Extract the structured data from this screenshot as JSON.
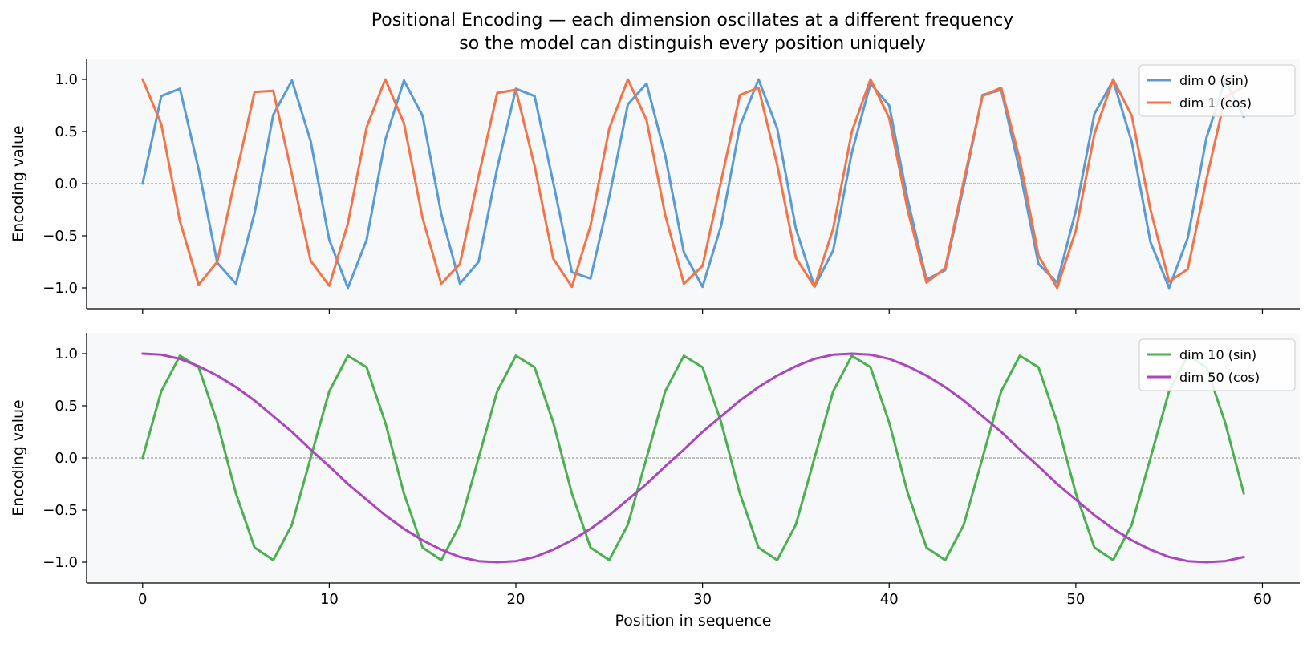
{
  "title_line1": "Positional Encoding — each dimension oscillates at a different frequency",
  "title_line2": "so the model can distinguish every position uniquely",
  "colors": {
    "background": "#ffffff",
    "plot_bg": "#f7f8fa",
    "zero_line": "#888888"
  },
  "chart_data": [
    {
      "type": "line",
      "panel": "top",
      "ylabel": "Encoding value",
      "xlabel": "",
      "xlim": [
        -3,
        62
      ],
      "ylim": [
        -1.2,
        1.2
      ],
      "xticks": [
        0,
        10,
        20,
        30,
        40,
        50,
        60
      ],
      "yticks": [
        -1.0,
        -0.5,
        0.0,
        0.5,
        1.0
      ],
      "show_x_tick_labels": false,
      "zero_line": true,
      "legend_position": "top-right",
      "series": [
        {
          "name": "dim 0 (sin)",
          "color": "#5b9bd5",
          "values": [
            0.0,
            0.84,
            0.91,
            0.14,
            -0.76,
            -0.96,
            -0.28,
            0.66,
            0.99,
            0.41,
            -0.54,
            -1.0,
            -0.54,
            0.42,
            0.99,
            0.65,
            -0.29,
            -0.96,
            -0.75,
            0.15,
            0.91,
            0.84,
            0.01,
            -0.85,
            -0.91,
            -0.13,
            0.76,
            0.96,
            0.27,
            -0.66,
            -0.99,
            -0.4,
            0.55,
            1.0,
            0.53,
            -0.43,
            -0.99,
            -0.64,
            0.3,
            0.96,
            0.75,
            -0.16,
            -0.92,
            -0.83,
            -0.02,
            0.85,
            0.9,
            0.12,
            -0.77,
            -0.95,
            -0.26,
            0.67,
            0.99,
            0.4,
            -0.56,
            -1.0,
            -0.52,
            0.44,
            0.99,
            0.64
          ]
        },
        {
          "name": "dim 1 (cos)",
          "color": "#f4744a",
          "values": [
            1.0,
            0.57,
            -0.36,
            -0.97,
            -0.75,
            0.08,
            0.88,
            0.89,
            0.09,
            -0.74,
            -0.98,
            -0.38,
            0.54,
            1.0,
            0.58,
            -0.33,
            -0.96,
            -0.77,
            0.07,
            0.87,
            0.9,
            0.17,
            -0.72,
            -0.99,
            -0.4,
            0.53,
            1.0,
            0.61,
            -0.3,
            -0.96,
            -0.79,
            0.03,
            0.85,
            0.92,
            0.18,
            -0.71,
            -0.99,
            -0.43,
            0.5,
            1.0,
            0.63,
            -0.26,
            -0.95,
            -0.81,
            0.03,
            0.84,
            0.92,
            0.23,
            -0.69,
            -1.0,
            -0.45,
            0.48,
            1.0,
            0.65,
            -0.25,
            -0.94,
            -0.82,
            0.04,
            0.83,
            0.93
          ]
        }
      ]
    },
    {
      "type": "line",
      "panel": "bottom",
      "ylabel": "Encoding value",
      "xlabel": "Position in sequence",
      "xlim": [
        -3,
        62
      ],
      "ylim": [
        -1.2,
        1.2
      ],
      "xticks": [
        0,
        10,
        20,
        30,
        40,
        50,
        60
      ],
      "yticks": [
        -1.0,
        -0.5,
        0.0,
        0.5,
        1.0
      ],
      "show_x_tick_labels": true,
      "zero_line": true,
      "legend_position": "top-right",
      "series": [
        {
          "name": "dim 10 (sin)",
          "color": "#4caf50",
          "values": [
            0.0,
            0.64,
            0.98,
            0.87,
            0.34,
            -0.34,
            -0.86,
            -0.98,
            -0.64,
            0.0,
            0.64,
            0.98,
            0.87,
            0.34,
            -0.34,
            -0.86,
            -0.98,
            -0.64,
            0.0,
            0.64,
            0.98,
            0.87,
            0.34,
            -0.34,
            -0.86,
            -0.98,
            -0.64,
            0.0,
            0.64,
            0.98,
            0.87,
            0.34,
            -0.34,
            -0.86,
            -0.98,
            -0.64,
            0.0,
            0.64,
            0.98,
            0.87,
            0.34,
            -0.34,
            -0.86,
            -0.98,
            -0.64,
            0.0,
            0.64,
            0.98,
            0.87,
            0.34,
            -0.34,
            -0.86,
            -0.98,
            -0.64,
            0.0,
            0.64,
            0.98,
            0.87,
            0.34,
            -0.34
          ]
        },
        {
          "name": "dim 50 (cos)",
          "color": "#ab47bc",
          "values": [
            1.0,
            0.99,
            0.95,
            0.88,
            0.79,
            0.68,
            0.55,
            0.4,
            0.25,
            0.08,
            -0.08,
            -0.25,
            -0.4,
            -0.55,
            -0.68,
            -0.79,
            -0.88,
            -0.95,
            -0.99,
            -1.0,
            -0.99,
            -0.95,
            -0.88,
            -0.79,
            -0.68,
            -0.55,
            -0.4,
            -0.25,
            -0.08,
            0.08,
            0.25,
            0.4,
            0.55,
            0.68,
            0.79,
            0.88,
            0.95,
            0.99,
            1.0,
            0.99,
            0.95,
            0.88,
            0.79,
            0.68,
            0.55,
            0.4,
            0.25,
            0.08,
            -0.08,
            -0.25,
            -0.4,
            -0.55,
            -0.68,
            -0.79,
            -0.88,
            -0.95,
            -0.99,
            -1.0,
            -0.99,
            -0.95
          ]
        }
      ]
    }
  ]
}
